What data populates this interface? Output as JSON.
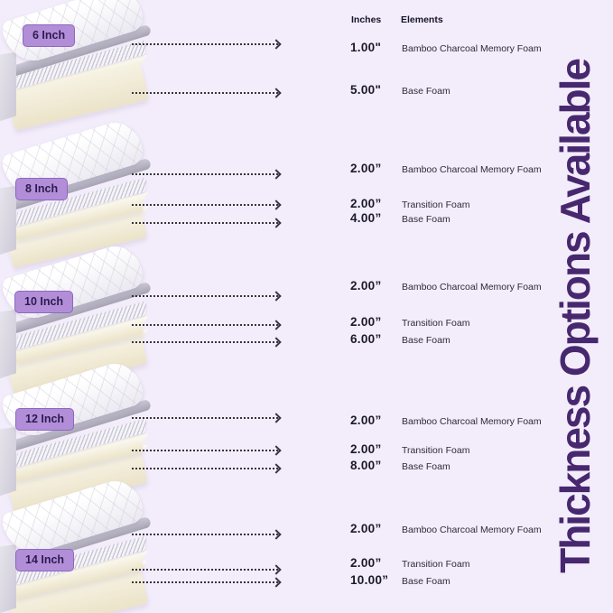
{
  "title": {
    "text": "Thickness Options Available"
  },
  "table_header": {
    "inches": "Inches",
    "elements": "Elements"
  },
  "sections": [
    {
      "badge": "6 Inch",
      "rows": [
        {
          "inches": "1.00\"",
          "element": "Bamboo Charcoal Memory Foam"
        },
        {
          "inches": "5.00\"",
          "element": "Base Foam"
        }
      ]
    },
    {
      "badge": "8 Inch",
      "rows": [
        {
          "inches": "2.00”",
          "element": "Bamboo Charcoal Memory Foam"
        },
        {
          "inches": "2.00”",
          "element": "Transition Foam"
        },
        {
          "inches": "4.00”",
          "element": "Base Foam"
        }
      ]
    },
    {
      "badge": "10 Inch",
      "rows": [
        {
          "inches": "2.00”",
          "element": "Bamboo Charcoal Memory Foam"
        },
        {
          "inches": "2.00”",
          "element": "Transition Foam"
        },
        {
          "inches": "6.00”",
          "element": "Base Foam"
        }
      ]
    },
    {
      "badge": "12 Inch",
      "rows": [
        {
          "inches": "2.00”",
          "element": "Bamboo Charcoal Memory Foam"
        },
        {
          "inches": "2.00”",
          "element": "Transition Foam"
        },
        {
          "inches": "8.00”",
          "element": "Base Foam"
        }
      ]
    },
    {
      "badge": "14 Inch",
      "rows": [
        {
          "inches": "2.00”",
          "element": "Bamboo Charcoal Memory Foam"
        },
        {
          "inches": "2.00”",
          "element": "Transition Foam"
        },
        {
          "inches": "10.00”",
          "element": "Base Foam"
        }
      ]
    }
  ],
  "colors": {
    "background": "#f3ecfa",
    "title_purple": "#47286f",
    "badge_bg": "#b28ed9",
    "badge_border": "#8d68bf",
    "badge_text": "#2d1b4e",
    "foam_cream": "#f6f2e2",
    "arrow": "#36343c"
  }
}
